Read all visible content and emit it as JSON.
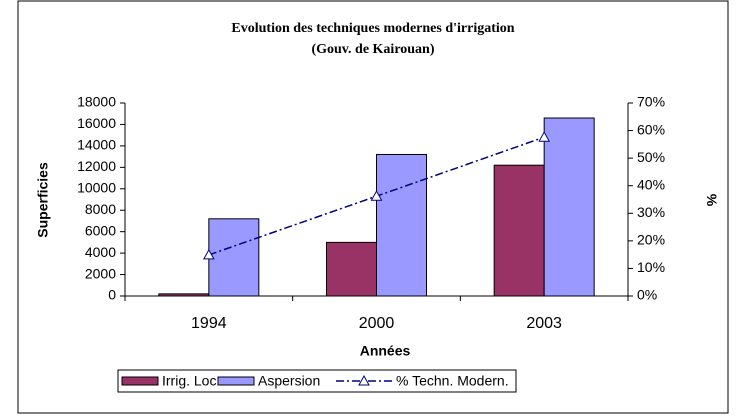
{
  "chart_data": {
    "type": "bar",
    "title": "Evolution des techniques modernes d'irrigation",
    "subtitle": "(Gouv. de Kairouan)",
    "x_label": "Années",
    "y_label": "Superficies",
    "y2_label": "%",
    "categories": [
      "1994",
      "2000",
      "2003"
    ],
    "series": [
      {
        "name": "Irrig. Loc.",
        "color": "#993366",
        "values": [
          200,
          5000,
          12200
        ]
      },
      {
        "name": "Aspersion",
        "color": "#9999ff",
        "values": [
          7200,
          13200,
          16600
        ]
      },
      {
        "name": "% Techn. Modern.",
        "color": "#000080",
        "type": "line",
        "axis": "y2",
        "values": [
          14.9,
          36.2,
          57.6
        ]
      }
    ],
    "ylim": [
      0,
      18000
    ],
    "yticks": [
      0,
      2000,
      4000,
      6000,
      8000,
      10000,
      12000,
      14000,
      16000,
      18000
    ],
    "y2lim": [
      0,
      70
    ],
    "y2ticks": [
      {
        "value": 0,
        "label": "0%"
      },
      {
        "value": 10,
        "label": "10%"
      },
      {
        "value": 20,
        "label": "20%"
      },
      {
        "value": 30,
        "label": "30%"
      },
      {
        "value": 40,
        "label": "40%"
      },
      {
        "value": 50,
        "label": "50%"
      },
      {
        "value": 60,
        "label": "60%"
      },
      {
        "value": 70,
        "label": "70%"
      }
    ],
    "legend": "bottom"
  }
}
